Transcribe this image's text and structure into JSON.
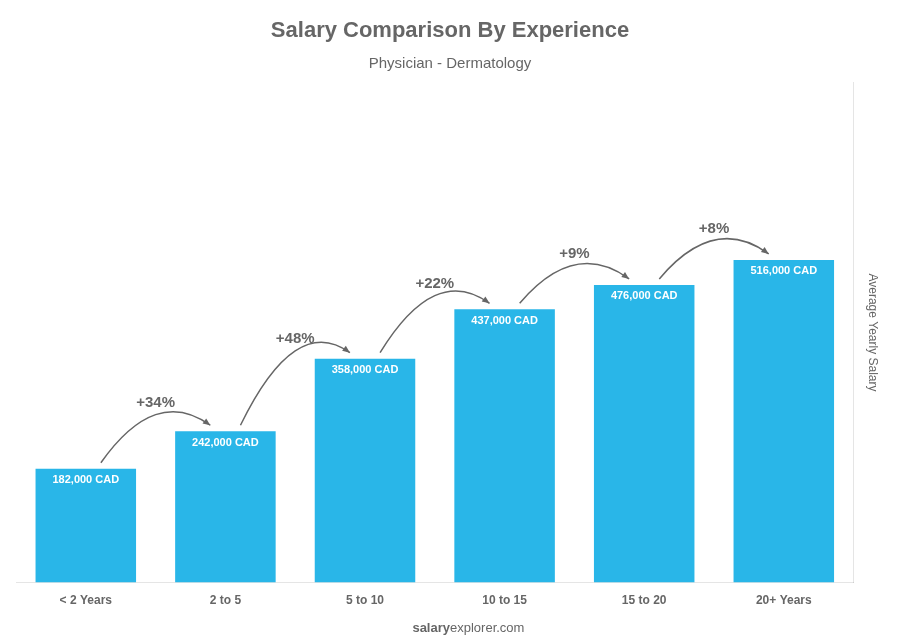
{
  "chart_data": {
    "type": "bar",
    "title": "Salary Comparison By Experience",
    "subtitle": "Physician - Dermatology",
    "ylabel": "Average Yearly Salary",
    "categories": [
      "< 2 Years",
      "2 to 5",
      "5 to 10",
      "10 to 15",
      "15 to 20",
      "20+ Years"
    ],
    "values": [
      182000,
      242000,
      358000,
      437000,
      476000,
      516000
    ],
    "value_labels": [
      "182,000 CAD",
      "242,000 CAD",
      "358,000 CAD",
      "437,000 CAD",
      "476,000 CAD",
      "516,000 CAD"
    ],
    "data_labels": true,
    "annotations": [
      "+34%",
      "+48%",
      "+22%",
      "+9%",
      "+8%"
    ],
    "footer": [
      "salary",
      "explorer.com"
    ],
    "color": "#29b6e8",
    "ylim": [
      0,
      799800
    ],
    "grid": false,
    "tick_labels": "x"
  }
}
